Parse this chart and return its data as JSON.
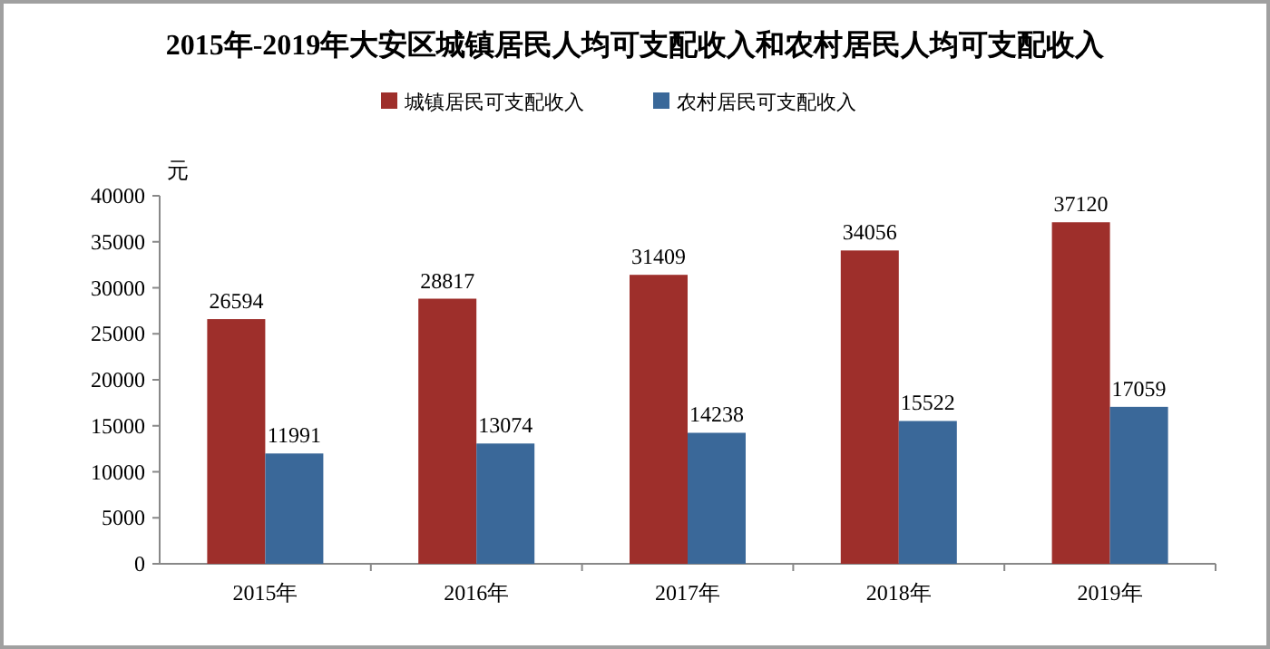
{
  "chart_data": {
    "type": "bar",
    "title": "2015年-2019年大安区城镇居民人均可支配收入和农村居民人均可支配收入",
    "ylabel": "元",
    "categories": [
      "2015年",
      "2016年",
      "2017年",
      "2018年",
      "2019年"
    ],
    "series": [
      {
        "name": "城镇居民可支配收入",
        "color": "#9e2f2b",
        "values": [
          26594,
          28817,
          31409,
          34056,
          37120
        ]
      },
      {
        "name": "农村居民可支配收入",
        "color": "#3a6899",
        "values": [
          11991,
          13074,
          14238,
          15522,
          17059
        ]
      }
    ],
    "ylim": [
      0,
      40000
    ],
    "yticks": [
      0,
      5000,
      10000,
      15000,
      20000,
      25000,
      30000,
      35000,
      40000
    ],
    "data_labels": true,
    "legend": "top",
    "grid": false
  }
}
